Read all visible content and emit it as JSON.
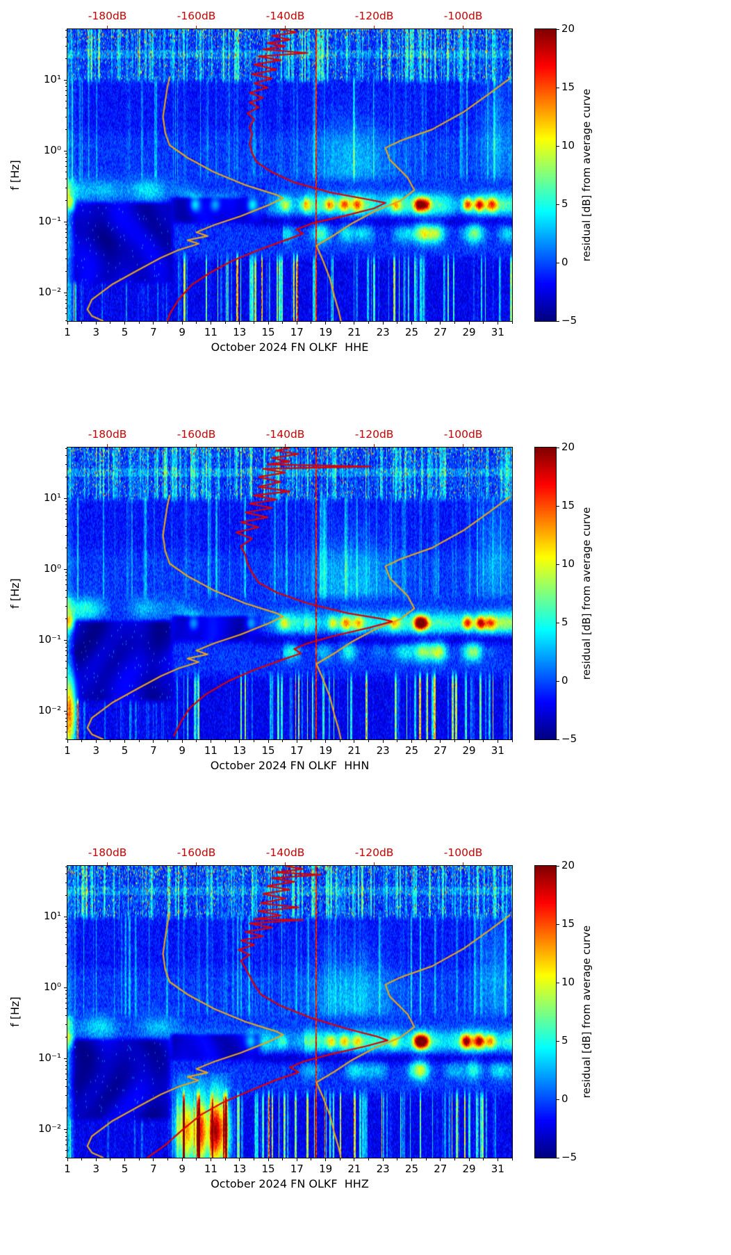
{
  "chart_data": {
    "type": "heatmap",
    "description": "Daily PSD residual spectrograms, station FN OLKF, October 2024, channels HHE/HHN/HHZ. Color is the residual [dB] from the average curve (jet colormap, -5..20 dB). The red curve is the average PSD referenced to the red top dB axis; the orange curves are the Peterson low/high noise models on the same dB axis.",
    "colormap": "jet",
    "curve_colors": {
      "average_psd": "#dd0000",
      "noise_models": "#e2a31f"
    },
    "x_axis": {
      "range_days": [
        1,
        32
      ],
      "tick_values": [
        1,
        3,
        5,
        7,
        9,
        11,
        13,
        15,
        17,
        19,
        21,
        23,
        25,
        27,
        29,
        31
      ],
      "tick_labels": [
        "1",
        "3",
        "5",
        "7",
        "9",
        "11",
        "13",
        "15",
        "17",
        "19",
        "21",
        "23",
        "25",
        "27",
        "29",
        "31"
      ]
    },
    "y_axis": {
      "label": "f [Hz]",
      "tick_values": [
        0.01,
        0.1,
        1,
        10
      ],
      "tick_labels": [
        "10⁻²",
        "10⁻¹",
        "10⁰",
        "10¹"
      ],
      "range_hz": [
        0.004,
        52
      ]
    },
    "top_axis": {
      "labels": [
        "-180dB",
        "-160dB",
        "-140dB",
        "-120dB",
        "-100dB"
      ],
      "values": [
        -180,
        -160,
        -140,
        -120,
        -100
      ],
      "range_db": [
        -189,
        -89
      ],
      "color": "#cc0000"
    },
    "colorbar": {
      "label": "residual [dB] from average curve",
      "tick_values": [
        20,
        15,
        10,
        5,
        0,
        -5
      ],
      "tick_labels": [
        "20",
        "15",
        "10",
        "5",
        "0",
        "−5"
      ],
      "vmin": -5,
      "vmax": 20
    },
    "noise_model_curves": {
      "low_noise_model_db_hz": [
        [
          -166,
          11
        ],
        [
          -166.5,
          8
        ],
        [
          -167,
          5
        ],
        [
          -167.5,
          3
        ],
        [
          -167,
          1.8
        ],
        [
          -166,
          1.2
        ],
        [
          -162,
          0.8
        ],
        [
          -156,
          0.5
        ],
        [
          -149,
          0.33
        ],
        [
          -142,
          0.24
        ],
        [
          -140.5,
          0.215
        ],
        [
          -144,
          0.17
        ],
        [
          -150,
          0.12
        ],
        [
          -156,
          0.09
        ],
        [
          -160,
          0.071
        ],
        [
          -157.5,
          0.063
        ],
        [
          -162,
          0.055
        ],
        [
          -159.5,
          0.049
        ],
        [
          -164,
          0.04
        ],
        [
          -168,
          0.031
        ],
        [
          -173,
          0.021
        ],
        [
          -179,
          0.013
        ],
        [
          -183.5,
          0.008
        ],
        [
          -184.5,
          0.0058
        ],
        [
          -183.5,
          0.0047
        ],
        [
          -181,
          0.004
        ]
      ],
      "high_noise_model_db_hz": [
        [
          -89.5,
          10.5
        ],
        [
          -94,
          6.5
        ],
        [
          -100,
          3.5
        ],
        [
          -107,
          2.0
        ],
        [
          -114,
          1.4
        ],
        [
          -117.5,
          1.1
        ],
        [
          -116.5,
          0.75
        ],
        [
          -112.5,
          0.42
        ],
        [
          -111,
          0.28
        ],
        [
          -114,
          0.2
        ],
        [
          -120,
          0.14
        ],
        [
          -125,
          0.095
        ],
        [
          -129,
          0.065
        ],
        [
          -133,
          0.046
        ],
        [
          -131.5,
          0.028
        ],
        [
          -130,
          0.016
        ],
        [
          -129,
          0.009
        ],
        [
          -128,
          0.0055
        ],
        [
          -127.5,
          0.004
        ]
      ]
    },
    "panels": [
      {
        "channel": "HHE",
        "xlabel": "October 2024 FN OLKF  HHE",
        "seed": 101,
        "average_psd_db_hz": [
          [
            -141,
            52
          ],
          [
            -137.5,
            47
          ],
          [
            -143,
            42
          ],
          [
            -139,
            37
          ],
          [
            -144,
            33
          ],
          [
            -140,
            30
          ],
          [
            -145,
            27
          ],
          [
            -135,
            24
          ],
          [
            -146,
            21.5
          ],
          [
            -141,
            19
          ],
          [
            -147,
            16.5
          ],
          [
            -142,
            14
          ],
          [
            -147.5,
            12
          ],
          [
            -143,
            10.5
          ],
          [
            -147,
            9
          ],
          [
            -144,
            7.8
          ],
          [
            -148,
            6.6
          ],
          [
            -145,
            5.6
          ],
          [
            -148,
            4.8
          ],
          [
            -146,
            4.1
          ],
          [
            -148.5,
            3.4
          ],
          [
            -147,
            2.8
          ],
          [
            -148,
            2.2
          ],
          [
            -147.5,
            1.7
          ],
          [
            -148,
            1.25
          ],
          [
            -147.5,
            0.95
          ],
          [
            -146.5,
            0.7
          ],
          [
            -143,
            0.5
          ],
          [
            -138,
            0.36
          ],
          [
            -130,
            0.26
          ],
          [
            -122,
            0.21
          ],
          [
            -117.5,
            0.185
          ],
          [
            -120,
            0.155
          ],
          [
            -127,
            0.12
          ],
          [
            -134,
            0.095
          ],
          [
            -137.5,
            0.078
          ],
          [
            -136,
            0.068
          ],
          [
            -140,
            0.055
          ],
          [
            -146,
            0.04
          ],
          [
            -152,
            0.028
          ],
          [
            -157,
            0.019
          ],
          [
            -161,
            0.013
          ],
          [
            -164,
            0.008
          ],
          [
            -166,
            0.005
          ],
          [
            -166.5,
            0.004
          ]
        ],
        "features": {
          "quiet_end_day": 8.6,
          "gap_line_day": 18.32,
          "band_spots": [
            [
              1.2,
              8
            ],
            [
              9.9,
              6
            ],
            [
              11.3,
              5
            ],
            [
              13.9,
              6
            ],
            [
              16.2,
              6
            ],
            [
              17.6,
              7
            ],
            [
              19.3,
              9
            ],
            [
              20.3,
              10
            ],
            [
              21.2,
              8
            ],
            [
              23.9,
              8
            ],
            [
              25.5,
              17
            ],
            [
              26.0,
              12
            ],
            [
              28.9,
              15
            ],
            [
              29.7,
              14
            ],
            [
              30.6,
              10
            ]
          ],
          "sub_spots": [
            [
              18.5,
              5
            ],
            [
              20.5,
              5
            ],
            [
              25.8,
              7
            ],
            [
              26.8,
              7
            ],
            [
              29.5,
              7
            ]
          ],
          "bottom_blobs": []
        }
      },
      {
        "channel": "HHN",
        "xlabel": "October 2024 FN OLKF  HHN",
        "seed": 202,
        "average_psd_db_hz": [
          [
            -139,
            52
          ],
          [
            -142,
            47
          ],
          [
            -137,
            42
          ],
          [
            -143,
            37
          ],
          [
            -139,
            33
          ],
          [
            -144,
            30
          ],
          [
            -121,
            28
          ],
          [
            -145,
            26
          ],
          [
            -140,
            23
          ],
          [
            -146,
            20
          ],
          [
            -141,
            17
          ],
          [
            -146,
            14.5
          ],
          [
            -139,
            12.5
          ],
          [
            -147,
            11
          ],
          [
            -142,
            9.6
          ],
          [
            -148,
            8.4
          ],
          [
            -143,
            7.3
          ],
          [
            -149,
            6.3
          ],
          [
            -144,
            5.4
          ],
          [
            -150,
            4.6
          ],
          [
            -146,
            3.9
          ],
          [
            -151,
            3.3
          ],
          [
            -147.5,
            2.7
          ],
          [
            -150,
            2.1
          ],
          [
            -149,
            1.6
          ],
          [
            -148.5,
            1.2
          ],
          [
            -147.5,
            0.9
          ],
          [
            -146,
            0.65
          ],
          [
            -142,
            0.47
          ],
          [
            -135,
            0.33
          ],
          [
            -126,
            0.24
          ],
          [
            -118.5,
            0.2
          ],
          [
            -116,
            0.183
          ],
          [
            -121,
            0.15
          ],
          [
            -129,
            0.115
          ],
          [
            -135,
            0.09
          ],
          [
            -138,
            0.075
          ],
          [
            -136.5,
            0.065
          ],
          [
            -141,
            0.052
          ],
          [
            -147,
            0.038
          ],
          [
            -153,
            0.026
          ],
          [
            -158,
            0.017
          ],
          [
            -161.5,
            0.011
          ],
          [
            -163.5,
            0.007
          ],
          [
            -165,
            0.0045
          ]
        ],
        "features": {
          "quiet_end_day": 8.6,
          "gap_line_day": 18.32,
          "band_spots": [
            [
              1.15,
              9
            ],
            [
              9.8,
              5
            ],
            [
              13.8,
              5
            ],
            [
              16.1,
              6
            ],
            [
              19.5,
              8
            ],
            [
              20.4,
              9
            ],
            [
              21.3,
              7
            ],
            [
              23.8,
              7
            ],
            [
              25.5,
              18
            ],
            [
              25.9,
              12
            ],
            [
              28.9,
              14
            ],
            [
              29.8,
              15
            ],
            [
              30.5,
              9
            ]
          ],
          "sub_spots": [
            [
              20.6,
              5
            ],
            [
              25.7,
              8
            ],
            [
              27.0,
              6
            ],
            [
              29.4,
              7
            ]
          ],
          "bottom_blobs": [
            [
              1.2,
              12
            ]
          ]
        }
      },
      {
        "channel": "HHZ",
        "xlabel": "October 2024 FN OLKF  HHZ",
        "seed": 303,
        "average_psd_db_hz": [
          [
            -140,
            52
          ],
          [
            -136,
            47
          ],
          [
            -142,
            42
          ],
          [
            -132,
            39
          ],
          [
            -143,
            35
          ],
          [
            -138,
            31
          ],
          [
            -144,
            27
          ],
          [
            -139,
            24
          ],
          [
            -145,
            21
          ],
          [
            -140,
            18
          ],
          [
            -145.5,
            15.5
          ],
          [
            -137,
            13.5
          ],
          [
            -146,
            12
          ],
          [
            -141,
            10.4
          ],
          [
            -147,
            9.2
          ],
          [
            -136,
            9.0
          ],
          [
            -148,
            8.0
          ],
          [
            -143,
            7.0
          ],
          [
            -149,
            6.1
          ],
          [
            -145,
            5.3
          ],
          [
            -150,
            4.6
          ],
          [
            -147,
            4.0
          ],
          [
            -150.5,
            3.4
          ],
          [
            -148,
            2.9
          ],
          [
            -150,
            2.4
          ],
          [
            -149,
            1.9
          ],
          [
            -148,
            1.45
          ],
          [
            -147,
            1.1
          ],
          [
            -145.5,
            0.8
          ],
          [
            -141,
            0.55
          ],
          [
            -134,
            0.37
          ],
          [
            -126,
            0.26
          ],
          [
            -119.5,
            0.205
          ],
          [
            -117,
            0.18
          ],
          [
            -122,
            0.148
          ],
          [
            -130,
            0.114
          ],
          [
            -136,
            0.09
          ],
          [
            -139,
            0.075
          ],
          [
            -137,
            0.064
          ],
          [
            -142,
            0.05
          ],
          [
            -148,
            0.035
          ],
          [
            -154,
            0.024
          ],
          [
            -159,
            0.016
          ],
          [
            -163,
            0.01
          ],
          [
            -167,
            0.006
          ],
          [
            -171,
            0.004
          ]
        ],
        "features": {
          "quiet_end_day": 8.4,
          "gap_line_day": 18.32,
          "band_spots": [
            [
              1.1,
              7
            ],
            [
              13.8,
              5
            ],
            [
              16.0,
              5
            ],
            [
              19.4,
              8
            ],
            [
              20.3,
              9
            ],
            [
              21.2,
              7
            ],
            [
              23.8,
              7
            ],
            [
              25.5,
              18
            ],
            [
              25.9,
              13
            ],
            [
              28.8,
              14
            ],
            [
              29.7,
              13
            ],
            [
              30.5,
              9
            ]
          ],
          "sub_spots": [
            [
              25.7,
              7
            ],
            [
              29.3,
              6
            ]
          ],
          "bottom_blobs": [
            [
              8.8,
              8
            ],
            [
              9.4,
              13
            ],
            [
              10.3,
              18
            ],
            [
              11.3,
              20
            ],
            [
              12.0,
              11
            ]
          ]
        }
      }
    ]
  }
}
